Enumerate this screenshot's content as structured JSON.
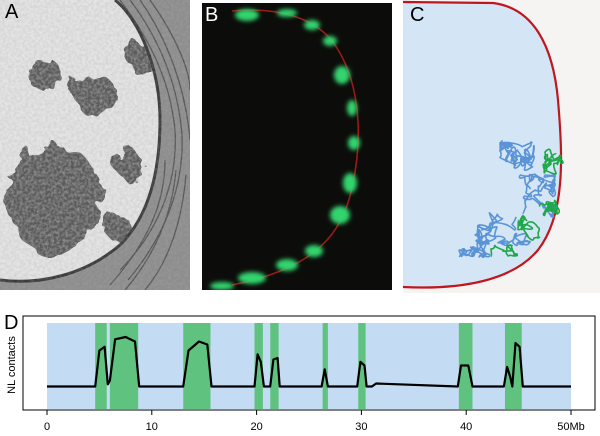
{
  "figure": {
    "panel_labels": {
      "a": "A",
      "b": "B",
      "c": "C",
      "d": "D"
    }
  },
  "colors": {
    "nucleus_fill": "#d4e6f6",
    "nuclear_lamina": "#c0171f",
    "chromatin_blue": "#5b94d6",
    "chromatin_green": "#1fa84a",
    "gfp_green": "#33d46e",
    "lad_green": "#5fc37f",
    "track_background": "#c3dbf3",
    "trace": "#000000"
  },
  "chart_data": {
    "type": "line",
    "ylabel": "NL contacts",
    "x_tick_labels": [
      "0",
      "10",
      "20",
      "30",
      "40",
      "50Mb"
    ],
    "x_ticks": [
      0,
      10,
      20,
      30,
      40,
      50
    ],
    "xlim": [
      0,
      50
    ],
    "lad_domains": [
      [
        4.6,
        5.7
      ],
      [
        6.0,
        8.7
      ],
      [
        13.0,
        15.6
      ],
      [
        19.8,
        20.6
      ],
      [
        21.3,
        22.1
      ],
      [
        26.3,
        26.8
      ],
      [
        29.7,
        30.4
      ],
      [
        39.3,
        40.6
      ],
      [
        43.7,
        45.3
      ]
    ],
    "series": [
      {
        "x": [
          0,
          4.6,
          5.0,
          5.5,
          5.8,
          6.0,
          6.5,
          7.5,
          8.4,
          8.8,
          13.0,
          13.5,
          14.5,
          15.3,
          15.7,
          19.8,
          20.1,
          20.4,
          20.7,
          21.3,
          21.6,
          22.0,
          22.2,
          26.2,
          26.5,
          26.8,
          29.6,
          29.9,
          30.3,
          30.5,
          31.0,
          31.4,
          39.2,
          39.5,
          40.2,
          40.6,
          43.6,
          43.9,
          44.2,
          44.4,
          44.7,
          45.1,
          45.4,
          50
        ],
        "y": [
          0.02,
          0.02,
          0.5,
          0.55,
          0.05,
          0.1,
          0.65,
          0.68,
          0.62,
          0.02,
          0.02,
          0.5,
          0.62,
          0.58,
          0.02,
          0.02,
          0.45,
          0.35,
          0.02,
          0.02,
          0.38,
          0.4,
          0.02,
          0.02,
          0.25,
          0.02,
          0.02,
          0.35,
          0.3,
          0.02,
          0.02,
          0.06,
          0.02,
          0.3,
          0.3,
          0.02,
          0.02,
          0.28,
          0.15,
          0.02,
          0.6,
          0.55,
          0.02,
          0.02
        ]
      }
    ]
  }
}
